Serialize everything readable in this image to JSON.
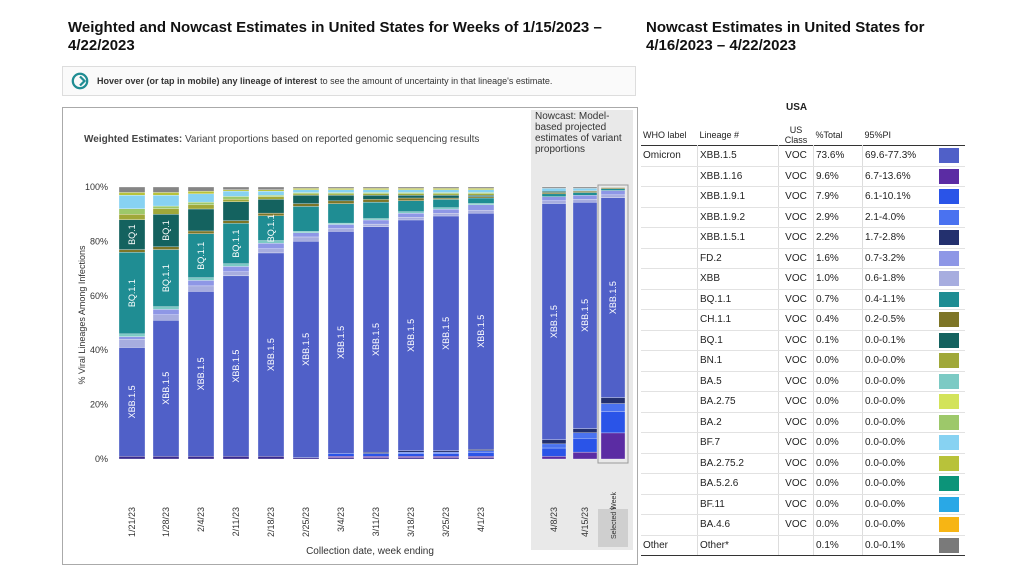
{
  "left_title": "Weighted and Nowcast Estimates in United States for Weeks of 1/15/2023 – 4/22/2023",
  "right_title": "Nowcast Estimates in United States for 4/16/2023 – 4/22/2023",
  "hover_note_bold": "Hover over (or tap in mobile) any lineage of interest",
  "hover_note_rest": "to see the amount of uncertainty in that lineage's estimate.",
  "chart_data": {
    "type": "bar",
    "stacked": true,
    "subtitle_bold": "Weighted Estimates:",
    "subtitle_rest": "Variant proportions based on reported genomic sequencing results",
    "nowcast_label": "Nowcast: Model-based projected estimates of variant proportions",
    "selected_label": "Selected Week",
    "xlabel": "Collection date, week ending",
    "ylabel": "% Viral Lineages Among Infections",
    "ylim": [
      0,
      100
    ],
    "yticks": [
      "0%",
      "20%",
      "40%",
      "60%",
      "80%",
      "100%"
    ],
    "categories": [
      "1/21/23",
      "1/28/23",
      "2/4/23",
      "2/11/23",
      "2/18/23",
      "2/25/23",
      "3/4/23",
      "3/11/23",
      "3/18/23",
      "3/25/23",
      "4/1/23",
      "4/8/23",
      "4/15/23",
      "4/22/23"
    ],
    "nowcast_categories": [
      "4/8/23",
      "4/15/23",
      "4/22/23"
    ],
    "bar_labels": [
      {
        "cat": 0,
        "series": "XBB.1.5",
        "text": "XBB.1.5"
      },
      {
        "cat": 0,
        "series": "BQ.1.1",
        "text": "BQ.1.1"
      },
      {
        "cat": 0,
        "series": "BQ.1",
        "text": "BQ.1"
      },
      {
        "cat": 1,
        "series": "XBB.1.5",
        "text": "XBB.1.5"
      },
      {
        "cat": 1,
        "series": "BQ.1.1",
        "text": "BQ.1.1"
      },
      {
        "cat": 1,
        "series": "BQ.1",
        "text": "BQ.1"
      },
      {
        "cat": 2,
        "series": "XBB.1.5",
        "text": "XBB.1.5"
      },
      {
        "cat": 2,
        "series": "BQ.1.1",
        "text": "BQ.1.1"
      },
      {
        "cat": 3,
        "series": "XBB.1.5",
        "text": "XBB.1.5"
      },
      {
        "cat": 3,
        "series": "BQ.1.1",
        "text": "BQ.1.1"
      },
      {
        "cat": 4,
        "series": "XBB.1.5",
        "text": "XBB.1.5"
      },
      {
        "cat": 4,
        "series": "BQ.1.1",
        "text": "BQ.1.1"
      },
      {
        "cat": 5,
        "series": "XBB.1.5",
        "text": "XBB.1.5"
      },
      {
        "cat": 6,
        "series": "XBB.1.5",
        "text": "XBB.1.5"
      },
      {
        "cat": 7,
        "series": "XBB.1.5",
        "text": "XBB.1.5"
      },
      {
        "cat": 8,
        "series": "XBB.1.5",
        "text": "XBB.1.5"
      },
      {
        "cat": 9,
        "series": "XBB.1.5",
        "text": "XBB.1.5"
      },
      {
        "cat": 10,
        "series": "XBB.1.5",
        "text": "XBB.1.5"
      },
      {
        "cat": 11,
        "series": "XBB.1.5",
        "text": "XBB.1.5"
      },
      {
        "cat": 12,
        "series": "XBB.1.5",
        "text": "XBB.1.5"
      },
      {
        "cat": 13,
        "series": "XBB.1.5",
        "text": "XBB.1.5"
      }
    ],
    "series": [
      {
        "name": "BA.2.75",
        "color": "#3a2a8f",
        "values": [
          1,
          1,
          1,
          1,
          1,
          0.5,
          0.5,
          0.5,
          0.5,
          0.5,
          0.5,
          0,
          0,
          0
        ]
      },
      {
        "name": "XBB.1.16",
        "color": "#5b2ca3",
        "values": [
          0,
          0,
          0,
          0,
          0,
          0,
          0.5,
          0.5,
          0.5,
          0.5,
          0.5,
          1,
          2.5,
          9.6
        ]
      },
      {
        "name": "XBB.1.9.1",
        "color": "#2a54e8",
        "values": [
          0,
          0,
          0,
          0,
          0,
          0,
          1,
          1,
          1,
          1,
          1.5,
          3,
          5,
          7.9
        ]
      },
      {
        "name": "XBB.1.9.2",
        "color": "#4a72f0",
        "values": [
          0,
          0,
          0,
          0,
          0,
          0,
          0,
          0,
          0.5,
          0.5,
          0.5,
          1.5,
          2,
          2.9
        ]
      },
      {
        "name": "XBB.1.5.1",
        "color": "#23306e",
        "values": [
          0,
          0,
          0,
          0,
          0,
          0,
          0,
          0.5,
          0.5,
          0.5,
          0.5,
          1.5,
          1.5,
          2.2
        ]
      },
      {
        "name": "XBB.1.5",
        "color": "#5060c8",
        "values": [
          40,
          50,
          60,
          67,
          74,
          78,
          80,
          82,
          84,
          85,
          86,
          86,
          82,
          73.6
        ]
      },
      {
        "name": "XBB",
        "color": "#a7addf",
        "values": [
          3,
          2,
          2,
          1.5,
          1.5,
          1.5,
          1,
          1,
          1,
          1,
          1,
          1,
          1,
          1.0
        ]
      },
      {
        "name": "FD.2",
        "color": "#8e97e6",
        "values": [
          1,
          2,
          2,
          2,
          2,
          1.5,
          1.5,
          1.5,
          1.5,
          1.5,
          2,
          1.5,
          1.5,
          1.6
        ]
      },
      {
        "name": "BA.5",
        "color": "#7ccac4",
        "values": [
          1,
          1,
          1,
          1,
          1,
          0.5,
          0.5,
          0.5,
          0.5,
          0.5,
          0.5,
          0,
          0,
          0
        ]
      },
      {
        "name": "BQ.1.1",
        "color": "#1f8d93",
        "values": [
          30,
          21,
          16,
          15,
          9,
          9,
          7,
          6,
          4,
          3,
          2,
          1,
          1,
          0.7
        ]
      },
      {
        "name": "CH.1.1",
        "color": "#7d7527",
        "values": [
          1,
          1,
          1,
          1,
          1,
          1,
          1,
          1,
          1,
          0.5,
          0.5,
          0.5,
          0.5,
          0.4
        ]
      },
      {
        "name": "BQ.1",
        "color": "#14625f",
        "values": [
          11,
          12,
          8,
          7,
          5,
          3,
          2,
          1.5,
          1,
          1,
          0.5,
          0.5,
          0.2,
          0.1
        ]
      },
      {
        "name": "BN.1",
        "color": "#a0a839",
        "values": [
          2,
          2,
          1.5,
          1,
          1,
          0.5,
          0.5,
          0.5,
          0.5,
          0.5,
          0.5,
          0,
          0,
          0
        ]
      },
      {
        "name": "BA.2",
        "color": "#9dc86a",
        "values": [
          2,
          1,
          1,
          1,
          0.5,
          0.5,
          0.5,
          0.5,
          0.5,
          0.5,
          0.5,
          0,
          0,
          0
        ]
      },
      {
        "name": "BF.7",
        "color": "#87d2f2",
        "values": [
          5,
          4,
          3,
          2,
          1.5,
          1,
          1,
          1,
          1,
          1,
          1,
          1,
          0.8,
          0
        ]
      },
      {
        "name": "BA.2.75.2",
        "color": "#b8c23a",
        "values": [
          1,
          1,
          1,
          0.5,
          0.5,
          0.5,
          0.5,
          0.5,
          0.5,
          0.5,
          0.5,
          0,
          0,
          0
        ]
      },
      {
        "name": "Other",
        "color": "#858585",
        "values": [
          2,
          2,
          1.5,
          1,
          1,
          0.5,
          0.5,
          0.5,
          0.5,
          0.5,
          0.5,
          0.5,
          0.5,
          0.1
        ]
      }
    ]
  },
  "table": {
    "region": "USA",
    "headers": [
      "WHO label",
      "Lineage #",
      "US Class",
      "%Total",
      "95%PI"
    ],
    "rows": [
      {
        "who": "Omicron",
        "lineage": "XBB.1.5",
        "cls": "VOC",
        "pct": "73.6%",
        "pi": "69.6-77.3%",
        "color": "#5060c8"
      },
      {
        "who": "",
        "lineage": "XBB.1.16",
        "cls": "VOC",
        "pct": "9.6%",
        "pi": "6.7-13.6%",
        "color": "#5b2ca3"
      },
      {
        "who": "",
        "lineage": "XBB.1.9.1",
        "cls": "VOC",
        "pct": "7.9%",
        "pi": "6.1-10.1%",
        "color": "#2a54e8"
      },
      {
        "who": "",
        "lineage": "XBB.1.9.2",
        "cls": "VOC",
        "pct": "2.9%",
        "pi": "2.1-4.0%",
        "color": "#4a72f0"
      },
      {
        "who": "",
        "lineage": "XBB.1.5.1",
        "cls": "VOC",
        "pct": "2.2%",
        "pi": "1.7-2.8%",
        "color": "#23306e"
      },
      {
        "who": "",
        "lineage": "FD.2",
        "cls": "VOC",
        "pct": "1.6%",
        "pi": "0.7-3.2%",
        "color": "#8e97e6"
      },
      {
        "who": "",
        "lineage": "XBB",
        "cls": "VOC",
        "pct": "1.0%",
        "pi": "0.6-1.8%",
        "color": "#a7addf"
      },
      {
        "who": "",
        "lineage": "BQ.1.1",
        "cls": "VOC",
        "pct": "0.7%",
        "pi": "0.4-1.1%",
        "color": "#1f8d93"
      },
      {
        "who": "",
        "lineage": "CH.1.1",
        "cls": "VOC",
        "pct": "0.4%",
        "pi": "0.2-0.5%",
        "color": "#7d7527"
      },
      {
        "who": "",
        "lineage": "BQ.1",
        "cls": "VOC",
        "pct": "0.1%",
        "pi": "0.0-0.1%",
        "color": "#14625f"
      },
      {
        "who": "",
        "lineage": "BN.1",
        "cls": "VOC",
        "pct": "0.0%",
        "pi": "0.0-0.0%",
        "color": "#a0a839"
      },
      {
        "who": "",
        "lineage": "BA.5",
        "cls": "VOC",
        "pct": "0.0%",
        "pi": "0.0-0.0%",
        "color": "#7ccac4"
      },
      {
        "who": "",
        "lineage": "BA.2.75",
        "cls": "VOC",
        "pct": "0.0%",
        "pi": "0.0-0.0%",
        "color": "#d3e35a"
      },
      {
        "who": "",
        "lineage": "BA.2",
        "cls": "VOC",
        "pct": "0.0%",
        "pi": "0.0-0.0%",
        "color": "#9dc86a"
      },
      {
        "who": "",
        "lineage": "BF.7",
        "cls": "VOC",
        "pct": "0.0%",
        "pi": "0.0-0.0%",
        "color": "#87d2f2"
      },
      {
        "who": "",
        "lineage": "BA.2.75.2",
        "cls": "VOC",
        "pct": "0.0%",
        "pi": "0.0-0.0%",
        "color": "#b8c23a"
      },
      {
        "who": "",
        "lineage": "BA.5.2.6",
        "cls": "VOC",
        "pct": "0.0%",
        "pi": "0.0-0.0%",
        "color": "#0c9479"
      },
      {
        "who": "",
        "lineage": "BF.11",
        "cls": "VOC",
        "pct": "0.0%",
        "pi": "0.0-0.0%",
        "color": "#29a8e6"
      },
      {
        "who": "",
        "lineage": "BA.4.6",
        "cls": "VOC",
        "pct": "0.0%",
        "pi": "0.0-0.0%",
        "color": "#f7b514"
      },
      {
        "who": "Other",
        "lineage": "Other*",
        "cls": "",
        "pct": "0.1%",
        "pi": "0.0-0.1%",
        "color": "#7a7a7a"
      }
    ]
  }
}
